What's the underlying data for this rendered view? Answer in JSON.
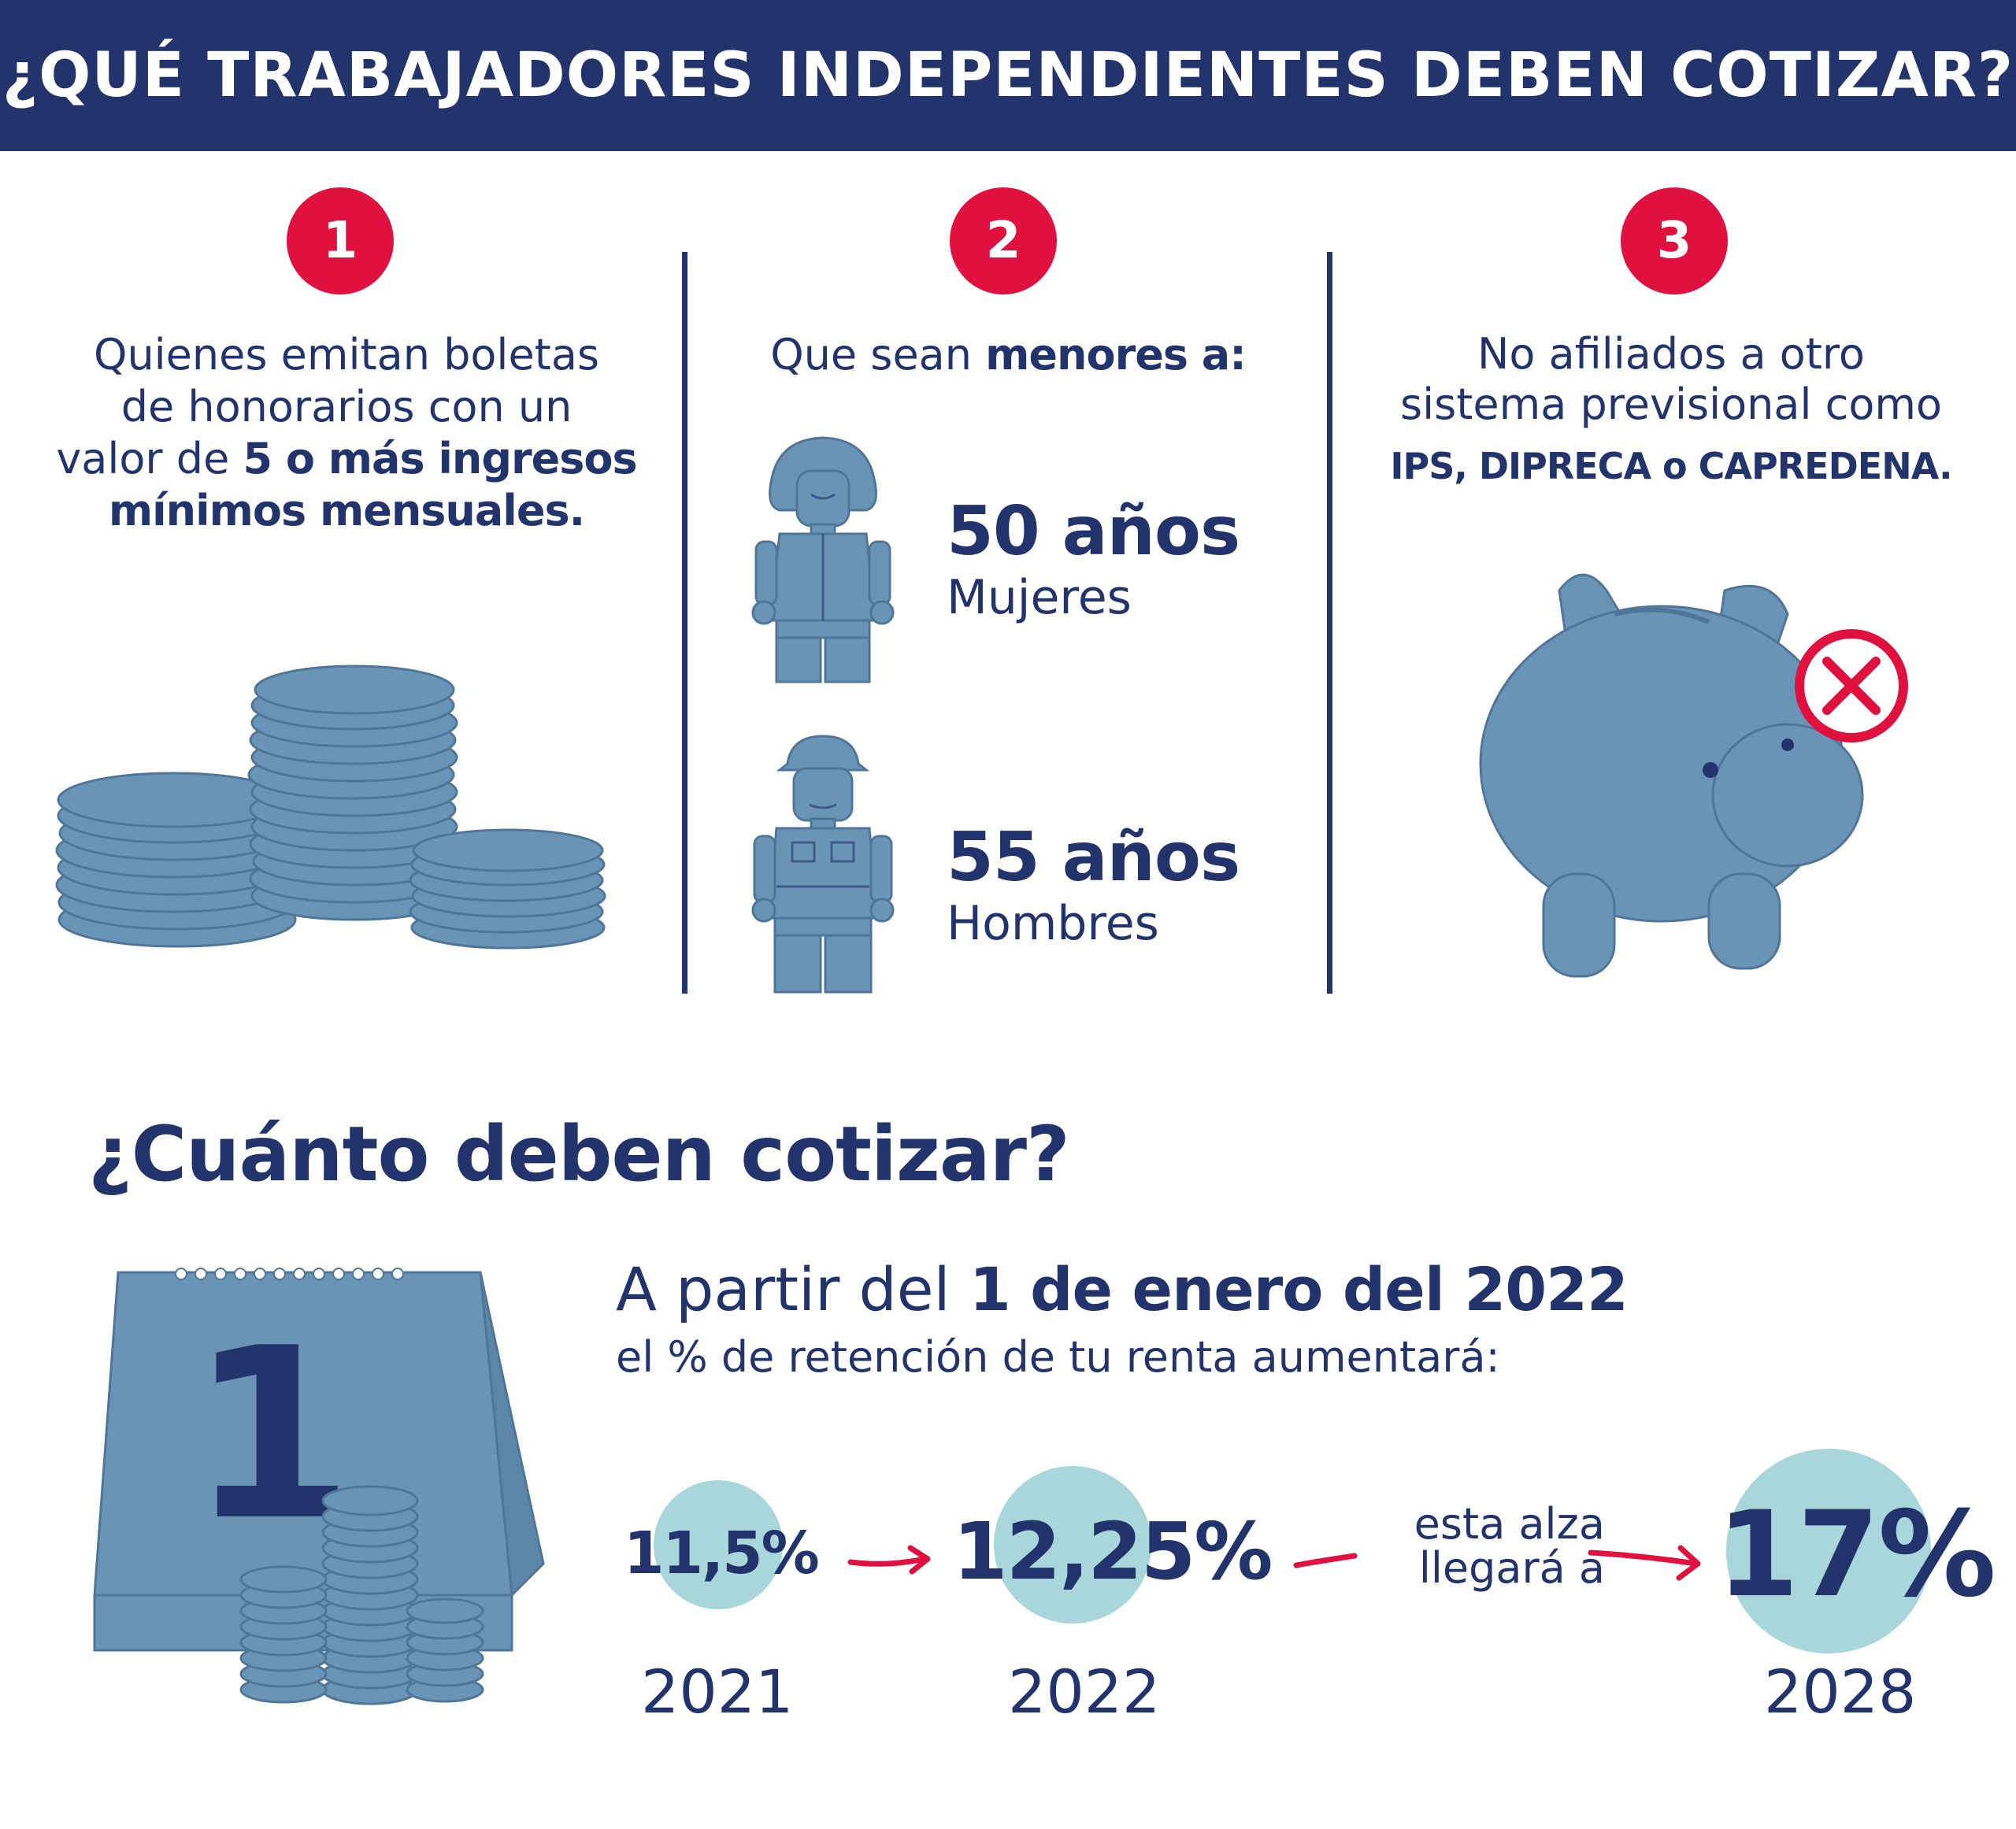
{
  "header": {
    "title": "¿QUÉ TRABAJADORES INDEPENDIENTES DEBEN COTIZAR?"
  },
  "columns": [
    {
      "number": "1",
      "text_lines": [
        "Quienes emitan boletas",
        "de honorarios con un"
      ],
      "text_prefix": "valor de ",
      "text_bold_1": "5 o más ingresos",
      "text_bold_2": "mínimos mensuales.",
      "illustration": "coin-stacks"
    },
    {
      "number": "2",
      "text_prefix": "Que sean ",
      "text_bold": "menores a:",
      "ages": [
        {
          "value": "50 años",
          "label": "Mujeres",
          "icon": "woman-figure-icon"
        },
        {
          "value": "55 años",
          "label": "Hombres",
          "icon": "man-worker-figure-icon"
        }
      ]
    },
    {
      "number": "3",
      "text_lines": [
        "No afiliados a otro",
        "sistema previsional como"
      ],
      "text_bold": "IPS, DIPRECA o CAPREDENA.",
      "illustration": "piggy-bank-crossed"
    }
  ],
  "section": {
    "title": "¿Cuánto deben cotizar?",
    "intro_prefix": "A partir del ",
    "intro_bold": "1 de enero del 2022",
    "intro_line2": "el % de retención de tu renta aumentará:",
    "calendar_day": "1",
    "rates": [
      {
        "value": "11,5%",
        "year": "2021"
      },
      {
        "value": "12,25%",
        "year": "2022"
      },
      {
        "value": "17%",
        "year": "2028"
      }
    ],
    "note_line1": "esta alza",
    "note_line2": "llegará a"
  },
  "colors": {
    "navy": "#22346b",
    "red": "#e0103f",
    "light_teal": "#a8d6da",
    "illustration_blue": "#6a94b6"
  }
}
